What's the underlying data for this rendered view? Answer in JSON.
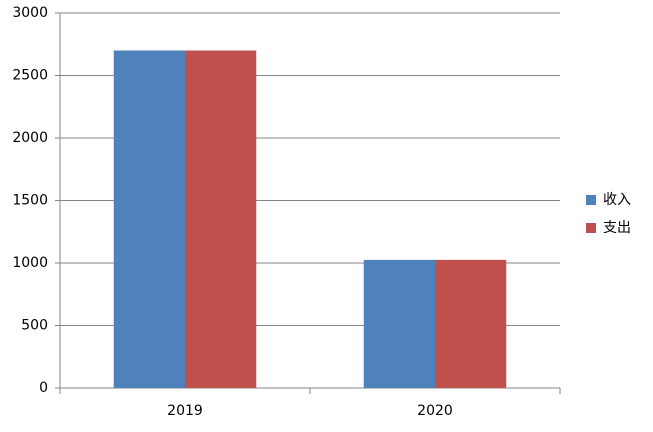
{
  "chart_data": {
    "type": "bar",
    "categories": [
      "2019",
      "2020"
    ],
    "series": [
      {
        "name": "收入",
        "color": "#4f81bd",
        "values": [
          2700,
          1025
        ]
      },
      {
        "name": "支出",
        "color": "#c0504d",
        "values": [
          2700,
          1025
        ]
      }
    ],
    "ylim": [
      0,
      3000
    ],
    "yticks": [
      0,
      500,
      1000,
      1500,
      2000,
      2500,
      3000
    ],
    "grid": true,
    "legend": "right"
  }
}
